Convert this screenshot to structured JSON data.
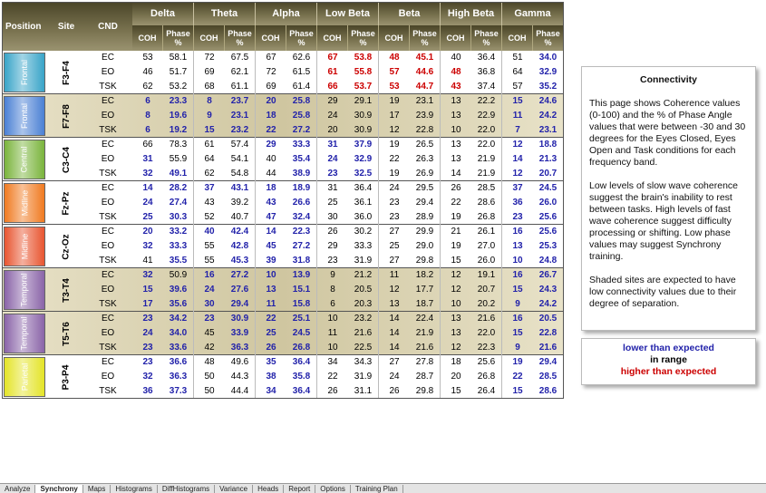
{
  "header": {
    "columns": [
      "Position",
      "Site",
      "CND"
    ],
    "groups": [
      "Delta",
      "Theta",
      "Alpha",
      "Low Beta",
      "Beta",
      "High Beta",
      "Gamma"
    ],
    "sub": [
      "COH",
      "Phase %"
    ]
  },
  "sites": [
    {
      "position": "Frontal",
      "site": "F3-F4",
      "color": "#38a4c8",
      "shaded": false,
      "rows": [
        {
          "cnd": "EC",
          "values": [
            "53",
            "58.1",
            "72",
            "67.5",
            "67",
            "62.6",
            "67",
            "53.8",
            "48",
            "45.1",
            "40",
            "36.4",
            "51",
            "34.0"
          ],
          "colors": [
            "#000",
            "#000",
            "#000",
            "#000",
            "#000",
            "#000",
            "#c00",
            "#c00",
            "#c00",
            "#c00",
            "#000",
            "#000",
            "#000",
            "#22a"
          ]
        },
        {
          "cnd": "EO",
          "values": [
            "46",
            "51.7",
            "69",
            "62.1",
            "72",
            "61.5",
            "61",
            "55.8",
            "57",
            "44.6",
            "48",
            "36.8",
            "64",
            "32.9"
          ],
          "colors": [
            "#000",
            "#000",
            "#000",
            "#000",
            "#000",
            "#000",
            "#c00",
            "#c00",
            "#c00",
            "#c00",
            "#c00",
            "#000",
            "#000",
            "#22a"
          ]
        },
        {
          "cnd": "TSK",
          "values": [
            "62",
            "53.2",
            "68",
            "61.1",
            "69",
            "61.4",
            "66",
            "53.7",
            "53",
            "44.7",
            "43",
            "37.4",
            "57",
            "35.2"
          ],
          "colors": [
            "#000",
            "#000",
            "#000",
            "#000",
            "#000",
            "#000",
            "#c00",
            "#c00",
            "#c00",
            "#c00",
            "#c00",
            "#000",
            "#000",
            "#22a"
          ]
        }
      ]
    },
    {
      "position": "Frontal",
      "site": "F7-F8",
      "color": "#4a80d4",
      "shaded": true,
      "rows": [
        {
          "cnd": "EC",
          "values": [
            "6",
            "23.3",
            "8",
            "23.7",
            "20",
            "25.8",
            "29",
            "29.1",
            "19",
            "23.1",
            "13",
            "22.2",
            "15",
            "24.6"
          ],
          "colors": [
            "#22a",
            "#22a",
            "#22a",
            "#22a",
            "#22a",
            "#22a",
            "#000",
            "#000",
            "#000",
            "#000",
            "#000",
            "#000",
            "#22a",
            "#22a"
          ]
        },
        {
          "cnd": "EO",
          "values": [
            "8",
            "19.6",
            "9",
            "23.1",
            "18",
            "25.8",
            "24",
            "30.9",
            "17",
            "23.9",
            "13",
            "22.9",
            "11",
            "24.2"
          ],
          "colors": [
            "#22a",
            "#22a",
            "#22a",
            "#22a",
            "#22a",
            "#22a",
            "#000",
            "#000",
            "#000",
            "#000",
            "#000",
            "#000",
            "#22a",
            "#22a"
          ]
        },
        {
          "cnd": "TSK",
          "values": [
            "6",
            "19.2",
            "15",
            "23.2",
            "22",
            "27.2",
            "20",
            "30.9",
            "12",
            "22.8",
            "10",
            "22.0",
            "7",
            "23.1"
          ],
          "colors": [
            "#22a",
            "#22a",
            "#22a",
            "#22a",
            "#22a",
            "#22a",
            "#000",
            "#000",
            "#000",
            "#000",
            "#000",
            "#000",
            "#22a",
            "#22a"
          ]
        }
      ]
    },
    {
      "position": "Central",
      "site": "C3-C4",
      "color": "#7ab43c",
      "shaded": false,
      "rows": [
        {
          "cnd": "EC",
          "values": [
            "66",
            "78.3",
            "61",
            "57.4",
            "29",
            "33.3",
            "31",
            "37.9",
            "19",
            "26.5",
            "13",
            "22.0",
            "12",
            "18.8"
          ],
          "colors": [
            "#000",
            "#000",
            "#000",
            "#000",
            "#22a",
            "#22a",
            "#22a",
            "#22a",
            "#000",
            "#000",
            "#000",
            "#000",
            "#22a",
            "#22a"
          ]
        },
        {
          "cnd": "EO",
          "values": [
            "31",
            "55.9",
            "64",
            "54.1",
            "40",
            "35.4",
            "24",
            "32.9",
            "22",
            "26.3",
            "13",
            "21.9",
            "14",
            "21.3"
          ],
          "colors": [
            "#22a",
            "#000",
            "#000",
            "#000",
            "#000",
            "#22a",
            "#22a",
            "#22a",
            "#000",
            "#000",
            "#000",
            "#000",
            "#22a",
            "#22a"
          ]
        },
        {
          "cnd": "TSK",
          "values": [
            "32",
            "49.1",
            "62",
            "54.8",
            "44",
            "38.9",
            "23",
            "32.5",
            "19",
            "26.9",
            "14",
            "21.9",
            "12",
            "20.7"
          ],
          "colors": [
            "#22a",
            "#22a",
            "#000",
            "#000",
            "#000",
            "#22a",
            "#22a",
            "#22a",
            "#000",
            "#000",
            "#000",
            "#000",
            "#22a",
            "#22a"
          ]
        }
      ]
    },
    {
      "position": "Midline",
      "site": "Fz-Pz",
      "color": "#f07a20",
      "shaded": false,
      "rows": [
        {
          "cnd": "EC",
          "values": [
            "14",
            "28.2",
            "37",
            "43.1",
            "18",
            "18.9",
            "31",
            "36.4",
            "24",
            "29.5",
            "26",
            "28.5",
            "37",
            "24.5"
          ],
          "colors": [
            "#22a",
            "#22a",
            "#22a",
            "#22a",
            "#22a",
            "#22a",
            "#000",
            "#000",
            "#000",
            "#000",
            "#000",
            "#000",
            "#22a",
            "#22a"
          ]
        },
        {
          "cnd": "EO",
          "values": [
            "24",
            "27.4",
            "43",
            "39.2",
            "43",
            "26.6",
            "25",
            "36.1",
            "23",
            "29.4",
            "22",
            "28.6",
            "36",
            "26.0"
          ],
          "colors": [
            "#22a",
            "#22a",
            "#000",
            "#000",
            "#22a",
            "#22a",
            "#000",
            "#000",
            "#000",
            "#000",
            "#000",
            "#000",
            "#22a",
            "#22a"
          ]
        },
        {
          "cnd": "TSK",
          "values": [
            "25",
            "30.3",
            "52",
            "40.7",
            "47",
            "32.4",
            "30",
            "36.0",
            "23",
            "28.9",
            "19",
            "26.8",
            "23",
            "25.6"
          ],
          "colors": [
            "#22a",
            "#22a",
            "#000",
            "#000",
            "#22a",
            "#22a",
            "#000",
            "#000",
            "#000",
            "#000",
            "#000",
            "#000",
            "#22a",
            "#22a"
          ]
        }
      ]
    },
    {
      "position": "Midline",
      "site": "Cz-Oz",
      "color": "#e85530",
      "shaded": false,
      "rows": [
        {
          "cnd": "EC",
          "values": [
            "20",
            "33.2",
            "40",
            "42.4",
            "14",
            "22.3",
            "26",
            "30.2",
            "27",
            "29.9",
            "21",
            "26.1",
            "16",
            "25.6"
          ],
          "colors": [
            "#22a",
            "#22a",
            "#22a",
            "#22a",
            "#22a",
            "#22a",
            "#000",
            "#000",
            "#000",
            "#000",
            "#000",
            "#000",
            "#22a",
            "#22a"
          ]
        },
        {
          "cnd": "EO",
          "values": [
            "32",
            "33.3",
            "55",
            "42.8",
            "45",
            "27.2",
            "29",
            "33.3",
            "25",
            "29.0",
            "19",
            "27.0",
            "13",
            "25.3"
          ],
          "colors": [
            "#22a",
            "#22a",
            "#000",
            "#22a",
            "#22a",
            "#22a",
            "#000",
            "#000",
            "#000",
            "#000",
            "#000",
            "#000",
            "#22a",
            "#22a"
          ]
        },
        {
          "cnd": "TSK",
          "values": [
            "41",
            "35.5",
            "55",
            "45.3",
            "39",
            "31.8",
            "23",
            "31.9",
            "27",
            "29.8",
            "15",
            "26.0",
            "10",
            "24.8"
          ],
          "colors": [
            "#000",
            "#22a",
            "#000",
            "#22a",
            "#22a",
            "#22a",
            "#000",
            "#000",
            "#000",
            "#000",
            "#000",
            "#000",
            "#22a",
            "#22a"
          ]
        }
      ]
    },
    {
      "position": "Temporal",
      "site": "T3-T4",
      "color": "#8a64a8",
      "shaded": true,
      "rows": [
        {
          "cnd": "EC",
          "values": [
            "32",
            "50.9",
            "16",
            "27.2",
            "10",
            "13.9",
            "9",
            "21.2",
            "11",
            "18.2",
            "12",
            "19.1",
            "16",
            "26.7"
          ],
          "colors": [
            "#22a",
            "#000",
            "#22a",
            "#22a",
            "#22a",
            "#22a",
            "#000",
            "#000",
            "#000",
            "#000",
            "#000",
            "#000",
            "#22a",
            "#22a"
          ]
        },
        {
          "cnd": "EO",
          "values": [
            "15",
            "39.6",
            "24",
            "27.6",
            "13",
            "15.1",
            "8",
            "20.5",
            "12",
            "17.7",
            "12",
            "20.7",
            "15",
            "24.3"
          ],
          "colors": [
            "#22a",
            "#22a",
            "#22a",
            "#22a",
            "#22a",
            "#22a",
            "#000",
            "#000",
            "#000",
            "#000",
            "#000",
            "#000",
            "#22a",
            "#22a"
          ]
        },
        {
          "cnd": "TSK",
          "values": [
            "17",
            "35.6",
            "30",
            "29.4",
            "11",
            "15.8",
            "6",
            "20.3",
            "13",
            "18.7",
            "10",
            "20.2",
            "9",
            "24.2"
          ],
          "colors": [
            "#22a",
            "#22a",
            "#22a",
            "#22a",
            "#22a",
            "#22a",
            "#000",
            "#000",
            "#000",
            "#000",
            "#000",
            "#000",
            "#22a",
            "#22a"
          ]
        }
      ]
    },
    {
      "position": "Temporal",
      "site": "T5-T6",
      "color": "#8a64a8",
      "shaded": true,
      "rows": [
        {
          "cnd": "EC",
          "values": [
            "23",
            "34.2",
            "23",
            "30.9",
            "22",
            "25.1",
            "10",
            "23.2",
            "14",
            "22.4",
            "13",
            "21.6",
            "16",
            "20.5"
          ],
          "colors": [
            "#22a",
            "#22a",
            "#22a",
            "#22a",
            "#22a",
            "#22a",
            "#000",
            "#000",
            "#000",
            "#000",
            "#000",
            "#000",
            "#22a",
            "#22a"
          ]
        },
        {
          "cnd": "EO",
          "values": [
            "24",
            "34.0",
            "45",
            "33.9",
            "25",
            "24.5",
            "11",
            "21.6",
            "14",
            "21.9",
            "13",
            "22.0",
            "15",
            "22.8"
          ],
          "colors": [
            "#22a",
            "#22a",
            "#000",
            "#22a",
            "#22a",
            "#22a",
            "#000",
            "#000",
            "#000",
            "#000",
            "#000",
            "#000",
            "#22a",
            "#22a"
          ]
        },
        {
          "cnd": "TSK",
          "values": [
            "23",
            "33.6",
            "42",
            "36.3",
            "26",
            "26.8",
            "10",
            "22.5",
            "14",
            "21.6",
            "12",
            "22.3",
            "9",
            "21.6"
          ],
          "colors": [
            "#22a",
            "#22a",
            "#000",
            "#22a",
            "#22a",
            "#22a",
            "#000",
            "#000",
            "#000",
            "#000",
            "#000",
            "#000",
            "#22a",
            "#22a"
          ]
        }
      ]
    },
    {
      "position": "Parietal",
      "site": "P3-P4",
      "color": "#e4e428",
      "shaded": false,
      "rows": [
        {
          "cnd": "EC",
          "values": [
            "23",
            "36.6",
            "48",
            "49.6",
            "35",
            "36.4",
            "34",
            "34.3",
            "27",
            "27.8",
            "18",
            "25.6",
            "19",
            "29.4"
          ],
          "colors": [
            "#22a",
            "#22a",
            "#000",
            "#000",
            "#22a",
            "#22a",
            "#000",
            "#000",
            "#000",
            "#000",
            "#000",
            "#000",
            "#22a",
            "#22a"
          ]
        },
        {
          "cnd": "EO",
          "values": [
            "32",
            "36.3",
            "50",
            "44.3",
            "38",
            "35.8",
            "22",
            "31.9",
            "24",
            "28.7",
            "20",
            "26.8",
            "22",
            "28.5"
          ],
          "colors": [
            "#22a",
            "#22a",
            "#000",
            "#000",
            "#22a",
            "#22a",
            "#000",
            "#000",
            "#000",
            "#000",
            "#000",
            "#000",
            "#22a",
            "#22a"
          ]
        },
        {
          "cnd": "TSK",
          "values": [
            "36",
            "37.3",
            "50",
            "44.4",
            "34",
            "36.4",
            "26",
            "31.1",
            "26",
            "29.8",
            "15",
            "26.4",
            "15",
            "28.6"
          ],
          "colors": [
            "#22a",
            "#22a",
            "#000",
            "#000",
            "#22a",
            "#22a",
            "#000",
            "#000",
            "#000",
            "#000",
            "#000",
            "#000",
            "#22a",
            "#22a"
          ]
        }
      ]
    }
  ],
  "panel": {
    "title": "Connectivity",
    "paragraphs": [
      "This page shows Coherence values (0-100) and the % of Phase Angle values that were between -30 and 30 degrees for the Eyes Closed, Eyes Open and Task conditions for each frequency band.",
      "Low levels of slow wave coherence suggest the brain's inability to rest between tasks. High levels of fast wave coherence suggest difficulty processing or shifting.  Low phase values may suggest Synchrony training.",
      "Shaded sites are expected to have low connectivity values due to their degree of separation."
    ]
  },
  "legend": [
    {
      "label": "lower than expected",
      "color": "#22a"
    },
    {
      "label": "in range",
      "color": "#000"
    },
    {
      "label": "higher than expected",
      "color": "#c00"
    }
  ],
  "tabs": {
    "items": [
      "Analyze",
      "Synchrony",
      "Maps",
      "Histograms",
      "DiffHistograms",
      "Variance",
      "Heads",
      "Report",
      "Options",
      "Training Plan"
    ],
    "active": "Synchrony"
  }
}
